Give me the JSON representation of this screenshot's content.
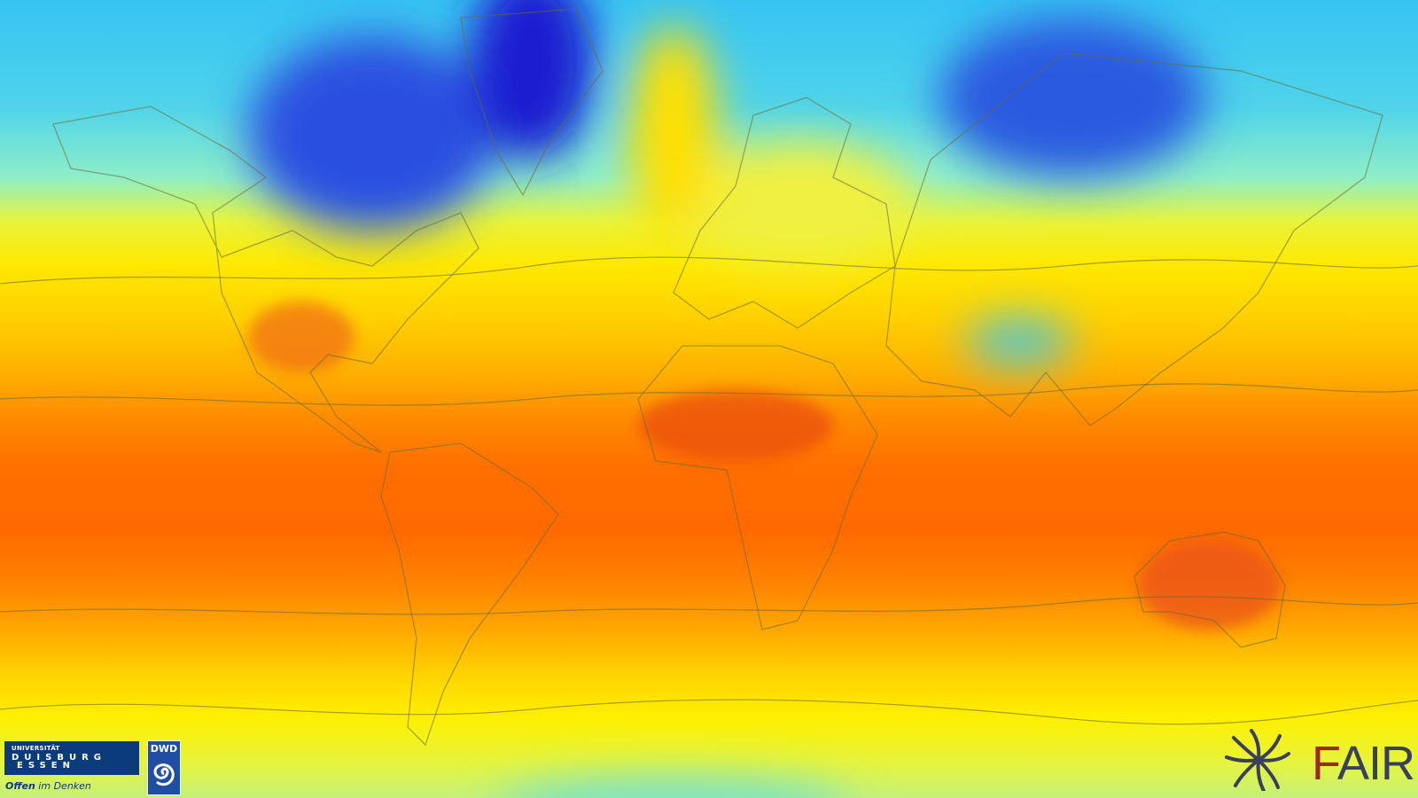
{
  "map": {
    "subject": "global temperature field",
    "colors": {
      "cold": "#1a2fd8",
      "cool": "#36c4f2",
      "mild": "#ffe800",
      "warm": "#ff6a00",
      "hot": "#e83a1a"
    }
  },
  "logos": {
    "university": {
      "line1": "UNIVERSITÄT",
      "line2": "DUISBURG",
      "line3": "ESSEN",
      "slogan_bold": "Offen",
      "slogan_rest": " im Denken"
    },
    "dwd": {
      "label": "DWD"
    },
    "fair": {
      "f": "F",
      "rest": "AIR"
    }
  }
}
